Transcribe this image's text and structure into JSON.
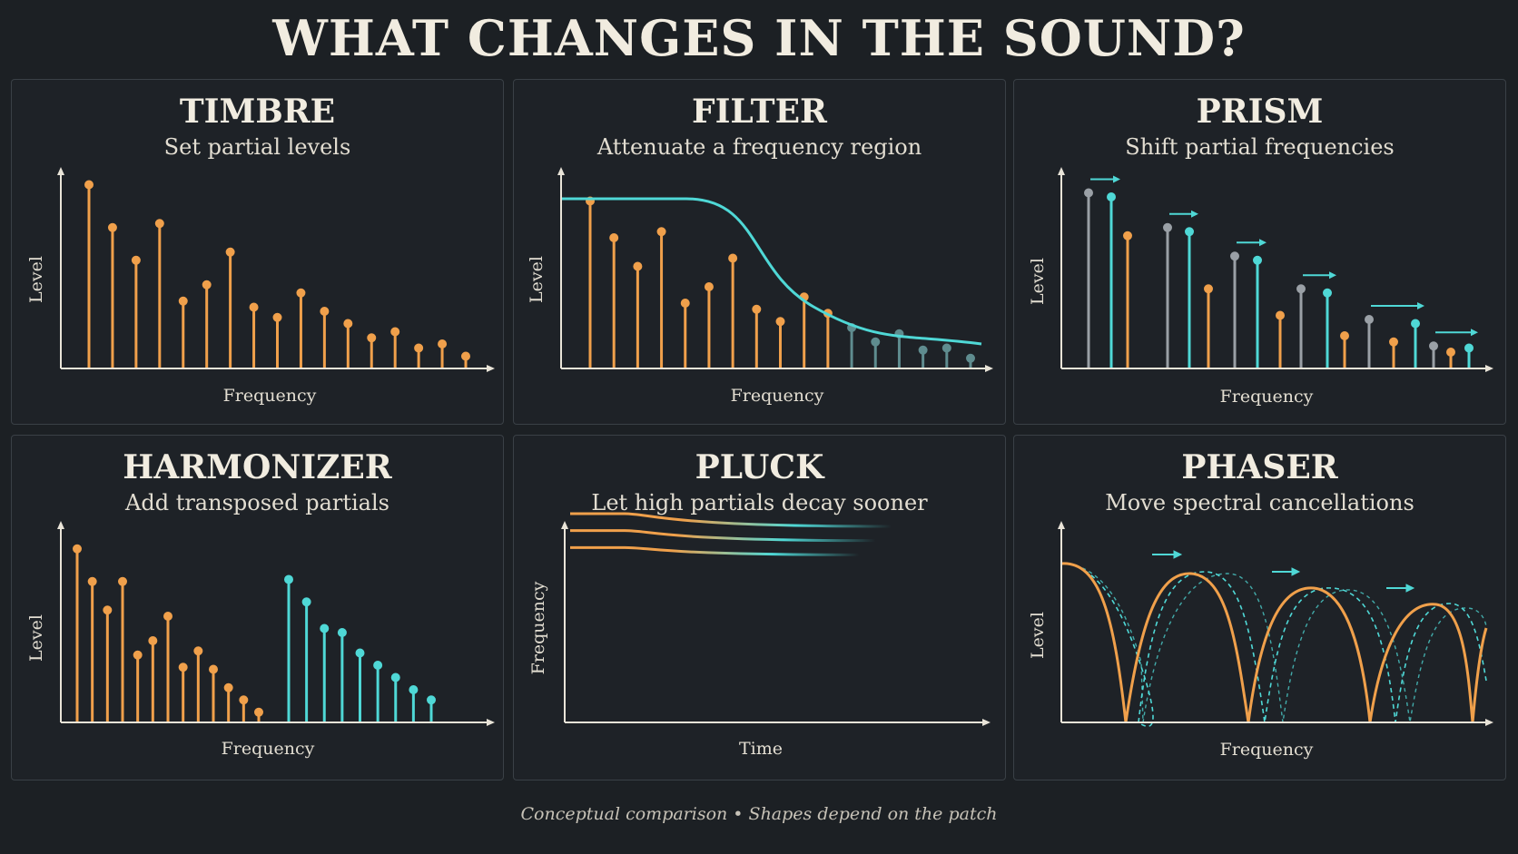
{
  "title": "WHAT CHANGES IN THE SOUND?",
  "footer": "Conceptual comparison • Shapes depend on the patch",
  "colors": {
    "orange": "#f0a04b",
    "cyan": "#4fd8d6",
    "gray": "#9aa0a6",
    "axis": "#e9e4d8"
  },
  "panels": [
    {
      "id": "timbre",
      "title": "TIMBRE",
      "subtitle": "Set partial levels",
      "xlabel": "Frequency",
      "ylabel": "Level",
      "stems": [
        0.9,
        0.69,
        0.53,
        0.71,
        0.33,
        0.41,
        0.57,
        0.3,
        0.25,
        0.37,
        0.28,
        0.22,
        0.15,
        0.18,
        0.1,
        0.12,
        0.06
      ]
    },
    {
      "id": "filter",
      "title": "FILTER",
      "subtitle": "Attenuate a frequency region",
      "xlabel": "Frequency",
      "ylabel": "Level",
      "stems": [
        0.82,
        0.64,
        0.5,
        0.67,
        0.32,
        0.4,
        0.54,
        0.29,
        0.23,
        0.35,
        0.27,
        0.2,
        0.13,
        0.17,
        0.09,
        0.1,
        0.05
      ]
    },
    {
      "id": "prism",
      "title": "PRISM",
      "subtitle": "Shift partial frequencies",
      "xlabel": "Frequency",
      "ylabel": "Level",
      "stems": [
        0.86,
        0.65,
        0.69,
        0.55,
        0.39,
        0.26,
        0.16,
        0.13,
        0.08
      ]
    },
    {
      "id": "harmonizer",
      "title": "HARMONIZER",
      "subtitle": "Add transposed partials",
      "xlabel": "Frequency",
      "ylabel": "Level",
      "stems": [
        0.85,
        0.69,
        0.55,
        0.69,
        0.33,
        0.4,
        0.52,
        0.27,
        0.35,
        0.26,
        0.17,
        0.11,
        0.05
      ],
      "transposed": [
        0.7,
        0.59,
        0.46,
        0.44,
        0.34,
        0.28,
        0.22,
        0.16,
        0.11
      ]
    },
    {
      "id": "pluck",
      "title": "PLUCK",
      "subtitle": "Let high partials decay sooner",
      "xlabel": "Time",
      "ylabel": "Frequency",
      "decay": [
        1.0,
        0.95,
        0.88,
        0.76,
        0.66,
        0.55,
        0.48,
        0.4,
        0.32,
        0.24
      ]
    },
    {
      "id": "phaser",
      "title": "PHASER",
      "subtitle": "Move spectral cancellations",
      "xlabel": "Frequency",
      "ylabel": "Level"
    }
  ]
}
